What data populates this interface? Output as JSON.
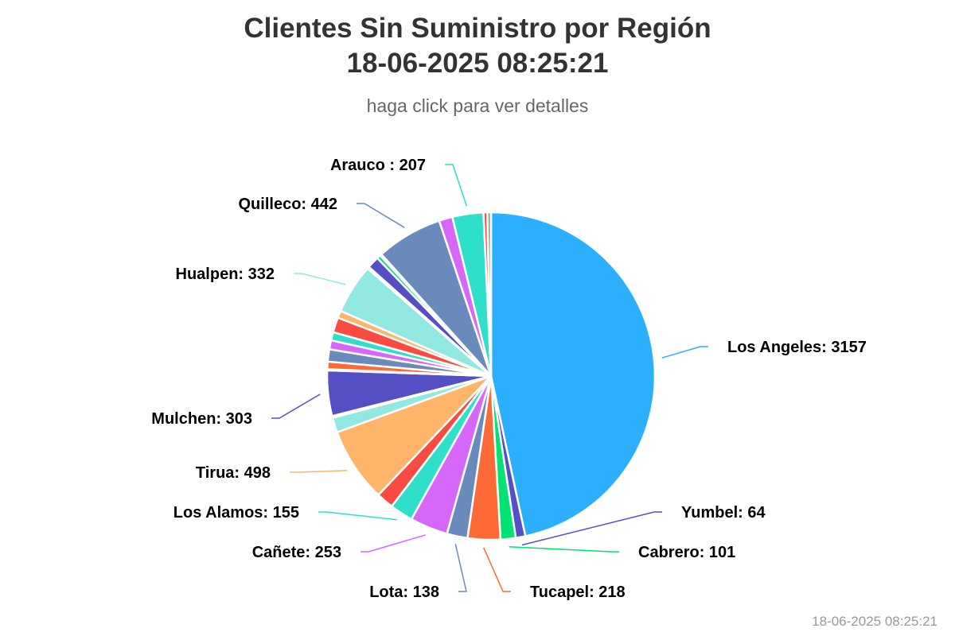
{
  "header": {
    "title_line1": "Clientes Sin Suministro por Región",
    "title_line2": "18-06-2025 08:25:21",
    "subtitle": "haga click para ver detalles"
  },
  "footer": {
    "timestamp": "18-06-2025 08:25:21"
  },
  "chart_data": {
    "type": "pie",
    "title": "Clientes Sin Suministro por Región 18-06-2025 08:25:21",
    "subtitle": "haga click para ver detalles",
    "slices": [
      {
        "label": "Los Angeles",
        "value": 3157,
        "color": "#2caffe",
        "display": "Los Angeles: 3157"
      },
      {
        "label": "Yumbel",
        "value": 64,
        "color": "#544fc5",
        "display": "Yumbel: 64"
      },
      {
        "label": "Cabrero",
        "value": 101,
        "color": "#00e272",
        "display": "Cabrero: 101"
      },
      {
        "label": "Tucapel",
        "value": 218,
        "color": "#fe6a35",
        "display": "Tucapel: 218"
      },
      {
        "label": "Lota",
        "value": 138,
        "color": "#6b8abc",
        "display": "Lota: 138"
      },
      {
        "label": "Cañete",
        "value": 253,
        "color": "#d568fb",
        "display": "Cañete: 253"
      },
      {
        "label": "Los Alamos",
        "value": 155,
        "color": "#2ee0ca",
        "display": "Los Alamos: 155"
      },
      {
        "label": "",
        "value": 115,
        "color": "#fa4b42",
        "display": ""
      },
      {
        "label": "Tirua",
        "value": 498,
        "color": "#feb56a",
        "display": "Tirua: 498"
      },
      {
        "label": "",
        "value": 100,
        "color": "#91e8e1",
        "display": ""
      },
      {
        "label": "",
        "value": 12,
        "color": "#2caffe",
        "display": ""
      },
      {
        "label": "Mulchen",
        "value": 303,
        "color": "#544fc5",
        "display": "Mulchen: 303"
      },
      {
        "label": "",
        "value": 8,
        "color": "#00e272",
        "display": ""
      },
      {
        "label": "",
        "value": 50,
        "color": "#fe6a35",
        "display": ""
      },
      {
        "label": "",
        "value": 82,
        "color": "#6b8abc",
        "display": ""
      },
      {
        "label": "",
        "value": 60,
        "color": "#d568fb",
        "display": ""
      },
      {
        "label": "",
        "value": 55,
        "color": "#2ee0ca",
        "display": ""
      },
      {
        "label": "",
        "value": 100,
        "color": "#fa4b42",
        "display": ""
      },
      {
        "label": "",
        "value": 48,
        "color": "#feb56a",
        "display": ""
      },
      {
        "label": "Hualpen",
        "value": 332,
        "color": "#91e8e1",
        "display": "Hualpen: 332"
      },
      {
        "label": "",
        "value": 14,
        "color": "#2caffe",
        "display": ""
      },
      {
        "label": "",
        "value": 80,
        "color": "#544fc5",
        "display": ""
      },
      {
        "label": "",
        "value": 25,
        "color": "#00e272",
        "display": ""
      },
      {
        "label": "",
        "value": 12,
        "color": "#fe6a35",
        "display": ""
      },
      {
        "label": "Quilleco",
        "value": 442,
        "color": "#6b8abc",
        "display": "Quilleco: 442"
      },
      {
        "label": "",
        "value": 90,
        "color": "#d568fb",
        "display": ""
      },
      {
        "label": "Arauco",
        "value": 207,
        "color": "#2ee0ca",
        "display": "Arauco : 207"
      },
      {
        "label": "",
        "value": 25,
        "color": "#fa4b42",
        "display": ""
      },
      {
        "label": "",
        "value": 25,
        "color": "#a0a0a0",
        "display": ""
      }
    ]
  }
}
